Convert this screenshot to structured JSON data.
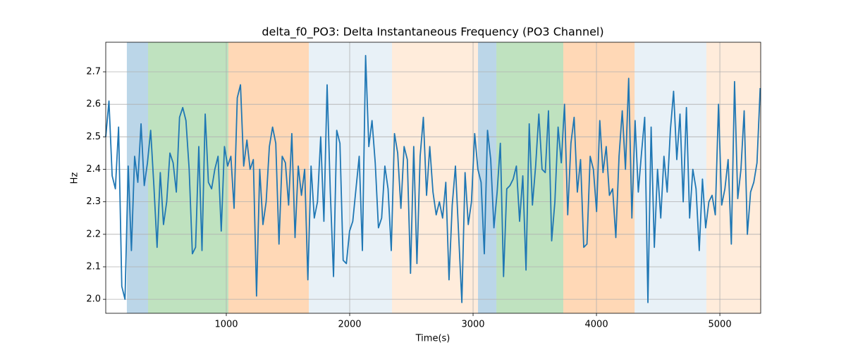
{
  "chart_data": {
    "type": "line",
    "title": "delta_f0_PO3: Delta Instantaneous Frequency (PO3 Channel)",
    "x_label": "Time(s)",
    "y_label": "Hz",
    "xlim": [
      23,
      5331
    ],
    "ylim": [
      1.957,
      2.791
    ],
    "xticks": [
      1000,
      2000,
      3000,
      4000,
      5000
    ],
    "yticks": [
      {
        "value": 2,
        "label": "2.0"
      },
      2.1,
      2.2,
      2.3,
      2.4,
      2.5,
      2.6,
      2.7
    ],
    "grid": true,
    "spans": [
      {
        "start": 194,
        "end": 366,
        "color": "#1f77b4",
        "opacity": 0.3
      },
      {
        "start": 366,
        "end": 1017,
        "color": "#2ca02c",
        "opacity": 0.3
      },
      {
        "start": 1017,
        "end": 1669,
        "color": "#ff7f0e",
        "opacity": 0.3
      },
      {
        "start": 1669,
        "end": 2343,
        "color": "#1f77b4",
        "opacity": 0.1
      },
      {
        "start": 2343,
        "end": 3040,
        "color": "#ff7f0e",
        "opacity": 0.15
      },
      {
        "start": 3040,
        "end": 3189,
        "color": "#1f77b4",
        "opacity": 0.3
      },
      {
        "start": 3189,
        "end": 3731,
        "color": "#2ca02c",
        "opacity": 0.3
      },
      {
        "start": 3731,
        "end": 4309,
        "color": "#ff7f0e",
        "opacity": 0.3
      },
      {
        "start": 4309,
        "end": 4891,
        "color": "#1f77b4",
        "opacity": 0.1
      },
      {
        "start": 4891,
        "end": 5331,
        "color": "#ff7f0e",
        "opacity": 0.15
      }
    ],
    "color": "#1f77b4",
    "x": [
      23,
      49,
      75,
      101,
      127,
      153,
      179,
      205,
      231,
      257,
      283,
      309,
      335,
      361,
      387,
      413,
      439,
      465,
      491,
      517,
      543,
      569,
      595,
      621,
      647,
      673,
      699,
      725,
      751,
      777,
      803,
      829,
      855,
      881,
      907,
      933,
      959,
      985,
      1011,
      1037,
      1063,
      1089,
      1115,
      1141,
      1167,
      1193,
      1219,
      1245,
      1271,
      1297,
      1323,
      1349,
      1375,
      1401,
      1427,
      1453,
      1479,
      1505,
      1531,
      1557,
      1583,
      1609,
      1635,
      1661,
      1687,
      1713,
      1739,
      1765,
      1791,
      1817,
      1843,
      1869,
      1895,
      1921,
      1947,
      1973,
      1999,
      2025,
      2051,
      2077,
      2103,
      2129,
      2155,
      2181,
      2207,
      2233,
      2259,
      2285,
      2311,
      2337,
      2363,
      2389,
      2415,
      2441,
      2467,
      2493,
      2519,
      2545,
      2571,
      2597,
      2623,
      2649,
      2675,
      2701,
      2727,
      2753,
      2779,
      2805,
      2831,
      2857,
      2883,
      2909,
      2935,
      2961,
      2987,
      3013,
      3039,
      3065,
      3091,
      3117,
      3143,
      3169,
      3195,
      3221,
      3247,
      3273,
      3299,
      3325,
      3351,
      3377,
      3403,
      3429,
      3455,
      3481,
      3507,
      3533,
      3559,
      3585,
      3611,
      3637,
      3663,
      3689,
      3715,
      3741,
      3767,
      3793,
      3819,
      3845,
      3871,
      3897,
      3923,
      3949,
      3975,
      4001,
      4027,
      4053,
      4079,
      4105,
      4131,
      4157,
      4183,
      4209,
      4235,
      4261,
      4287,
      4313,
      4339,
      4365,
      4391,
      4417,
      4443,
      4469,
      4495,
      4521,
      4547,
      4573,
      4599,
      4625,
      4651,
      4677,
      4703,
      4729,
      4755,
      4781,
      4807,
      4833,
      4859,
      4885,
      4911,
      4937,
      4963,
      4989,
      5015,
      5041,
      5067,
      5093,
      5119,
      5145,
      5171,
      5197,
      5223,
      5249,
      5275,
      5301,
      5327
    ],
    "values": [
      2.5,
      2.61,
      2.38,
      2.34,
      2.53,
      2.04,
      2.0,
      2.41,
      2.15,
      2.44,
      2.36,
      2.54,
      2.35,
      2.42,
      2.52,
      2.35,
      2.16,
      2.39,
      2.23,
      2.3,
      2.45,
      2.42,
      2.33,
      2.56,
      2.59,
      2.55,
      2.4,
      2.14,
      2.16,
      2.47,
      2.15,
      2.57,
      2.36,
      2.34,
      2.4,
      2.44,
      2.21,
      2.47,
      2.41,
      2.44,
      2.28,
      2.62,
      2.66,
      2.41,
      2.49,
      2.4,
      2.43,
      2.01,
      2.4,
      2.23,
      2.3,
      2.47,
      2.53,
      2.48,
      2.17,
      2.44,
      2.42,
      2.29,
      2.51,
      2.19,
      2.41,
      2.32,
      2.4,
      2.06,
      2.41,
      2.25,
      2.3,
      2.5,
      2.24,
      2.66,
      2.33,
      2.07,
      2.52,
      2.48,
      2.12,
      2.11,
      2.21,
      2.24,
      2.34,
      2.44,
      2.15,
      2.75,
      2.47,
      2.55,
      2.42,
      2.22,
      2.25,
      2.41,
      2.34,
      2.15,
      2.51,
      2.45,
      2.28,
      2.47,
      2.43,
      2.08,
      2.47,
      2.11,
      2.44,
      2.56,
      2.32,
      2.47,
      2.33,
      2.26,
      2.3,
      2.25,
      2.36,
      2.06,
      2.29,
      2.41,
      2.2,
      1.99,
      2.39,
      2.23,
      2.3,
      2.51,
      2.4,
      2.36,
      2.14,
      2.52,
      2.43,
      2.22,
      2.33,
      2.48,
      2.07,
      2.34,
      2.35,
      2.37,
      2.41,
      2.24,
      2.38,
      2.09,
      2.54,
      2.29,
      2.41,
      2.57,
      2.4,
      2.39,
      2.58,
      2.18,
      2.3,
      2.53,
      2.42,
      2.6,
      2.26,
      2.48,
      2.56,
      2.33,
      2.43,
      2.16,
      2.17,
      2.44,
      2.4,
      2.27,
      2.55,
      2.39,
      2.47,
      2.32,
      2.34,
      2.19,
      2.44,
      2.58,
      2.4,
      2.68,
      2.25,
      2.55,
      2.33,
      2.45,
      2.56,
      1.99,
      2.53,
      2.16,
      2.4,
      2.25,
      2.44,
      2.33,
      2.52,
      2.64,
      2.43,
      2.57,
      2.3,
      2.59,
      2.25,
      2.4,
      2.34,
      2.15,
      2.37,
      2.22,
      2.3,
      2.32,
      2.26,
      2.6,
      2.29,
      2.34,
      2.43,
      2.17,
      2.67,
      2.31,
      2.4,
      2.58,
      2.2,
      2.33,
      2.36,
      2.42,
      2.65
    ]
  }
}
